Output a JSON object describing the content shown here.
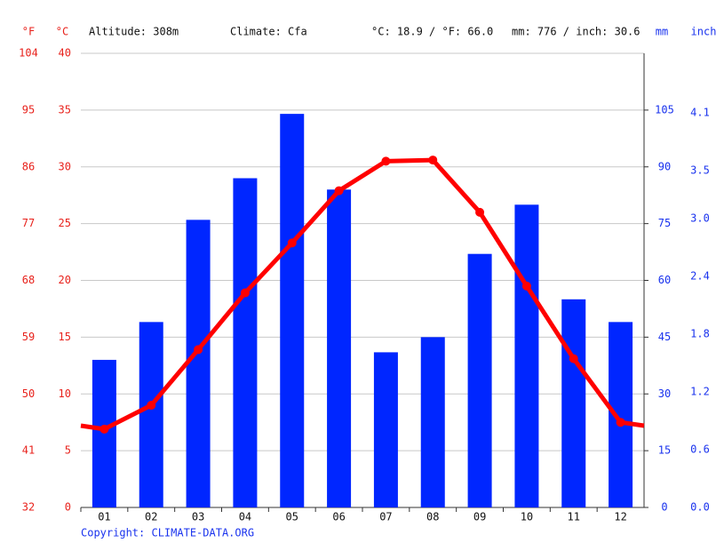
{
  "chart_data": {
    "type": "bar",
    "header": {
      "f_unit": "°F",
      "c_unit": "°C",
      "altitude": "Altitude: 308m",
      "climate": "Climate: Cfa",
      "temp_avg": "°C: 18.9 / °F: 66.0",
      "precip_total": "mm: 776 / inch: 30.6",
      "mm_unit": "mm",
      "inch_unit": "inch"
    },
    "copyright": "Copyright: CLIMATE-DATA.ORG",
    "categories": [
      "01",
      "02",
      "03",
      "04",
      "05",
      "06",
      "07",
      "08",
      "09",
      "10",
      "11",
      "12"
    ],
    "series": [
      {
        "type": "bar",
        "axis": "y2",
        "color": "#0026ff",
        "values": [
          39,
          49,
          76,
          87,
          104,
          84,
          41,
          45,
          67,
          80,
          55,
          49
        ]
      },
      {
        "type": "line",
        "axis": "y",
        "color": "#ff0000",
        "values": [
          6.9,
          9.0,
          13.9,
          18.9,
          23.3,
          27.9,
          30.5,
          30.6,
          26.0,
          19.5,
          13.1,
          7.5
        ]
      }
    ],
    "ylim": [
      0,
      40
    ],
    "yticks": [
      0,
      5,
      10,
      15,
      20,
      25,
      30,
      35,
      40
    ],
    "yflim": [
      32,
      104
    ],
    "yfticks": [
      32,
      41,
      50,
      59,
      68,
      77,
      86,
      95,
      104
    ],
    "y2lim": [
      0,
      120
    ],
    "y2ticks": [
      0,
      15,
      30,
      45,
      60,
      75,
      90,
      105
    ],
    "y3lim": [
      0,
      4.72
    ],
    "y3ticks": [
      {
        "value": 0,
        "label": "0.0"
      },
      0.6,
      1.2,
      1.8,
      2.4,
      {
        "value": 3,
        "label": "3.0"
      },
      3.5,
      4.1
    ],
    "grid": true
  }
}
